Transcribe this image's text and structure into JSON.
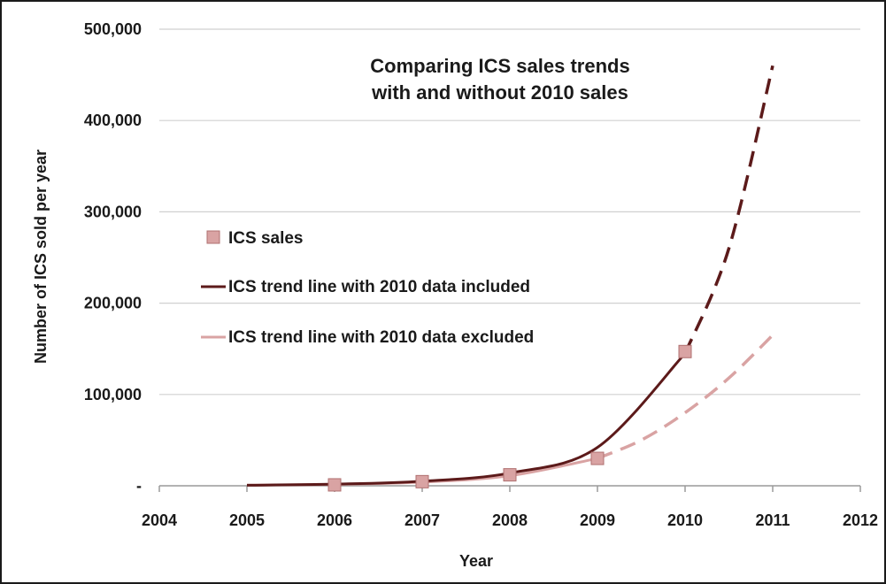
{
  "chart_data": {
    "type": "scatter",
    "title": [
      "Comparing ICS sales trends",
      "with and without 2010 sales"
    ],
    "xlabel": "Year",
    "ylabel": "Number of ICS sold per year",
    "xlim": [
      2004,
      2012
    ],
    "ylim": [
      0,
      500000
    ],
    "x_ticks": [
      2004,
      2005,
      2006,
      2007,
      2008,
      2009,
      2010,
      2011,
      2012
    ],
    "y_ticks": [
      {
        "value": 0,
        "label": "-"
      },
      {
        "value": 100000,
        "label": "100,000"
      },
      {
        "value": 200000,
        "label": "200,000"
      },
      {
        "value": 300000,
        "label": "300,000"
      },
      {
        "value": 400000,
        "label": "400,000"
      },
      {
        "value": 500000,
        "label": "500,000"
      }
    ],
    "grid": "horizontal",
    "legend_position": "left-middle",
    "series": [
      {
        "name": "ICS sales",
        "kind": "markers",
        "color": "#d9a3a3",
        "edge_color": "#b07070",
        "points": [
          {
            "x": 2006,
            "y": 1000
          },
          {
            "x": 2007,
            "y": 4500
          },
          {
            "x": 2008,
            "y": 12000
          },
          {
            "x": 2009,
            "y": 30000
          },
          {
            "x": 2010,
            "y": 147000
          }
        ]
      },
      {
        "name": "ICS trend line with 2010 data included",
        "kind": "trend",
        "color": "#5c1a1a",
        "points_solid": [
          {
            "x": 2005,
            "y": 600
          },
          {
            "x": 2006,
            "y": 1800
          },
          {
            "x": 2007,
            "y": 5000
          },
          {
            "x": 2008,
            "y": 14000
          },
          {
            "x": 2009,
            "y": 42000
          },
          {
            "x": 2010,
            "y": 145000
          }
        ],
        "points_dashed": [
          {
            "x": 2010,
            "y": 145000
          },
          {
            "x": 2010.5,
            "y": 260000
          },
          {
            "x": 2011,
            "y": 460000
          }
        ]
      },
      {
        "name": "ICS trend line with 2010 data excluded",
        "kind": "trend",
        "color": "#d9a3a3",
        "points_solid": [
          {
            "x": 2005,
            "y": 700
          },
          {
            "x": 2006,
            "y": 1500
          },
          {
            "x": 2007,
            "y": 4000
          },
          {
            "x": 2008,
            "y": 11000
          },
          {
            "x": 2009,
            "y": 30000
          }
        ],
        "points_dashed": [
          {
            "x": 2009,
            "y": 30000
          },
          {
            "x": 2009.5,
            "y": 50000
          },
          {
            "x": 2010,
            "y": 80000
          },
          {
            "x": 2010.5,
            "y": 118000
          },
          {
            "x": 2011,
            "y": 165000
          }
        ]
      }
    ]
  }
}
